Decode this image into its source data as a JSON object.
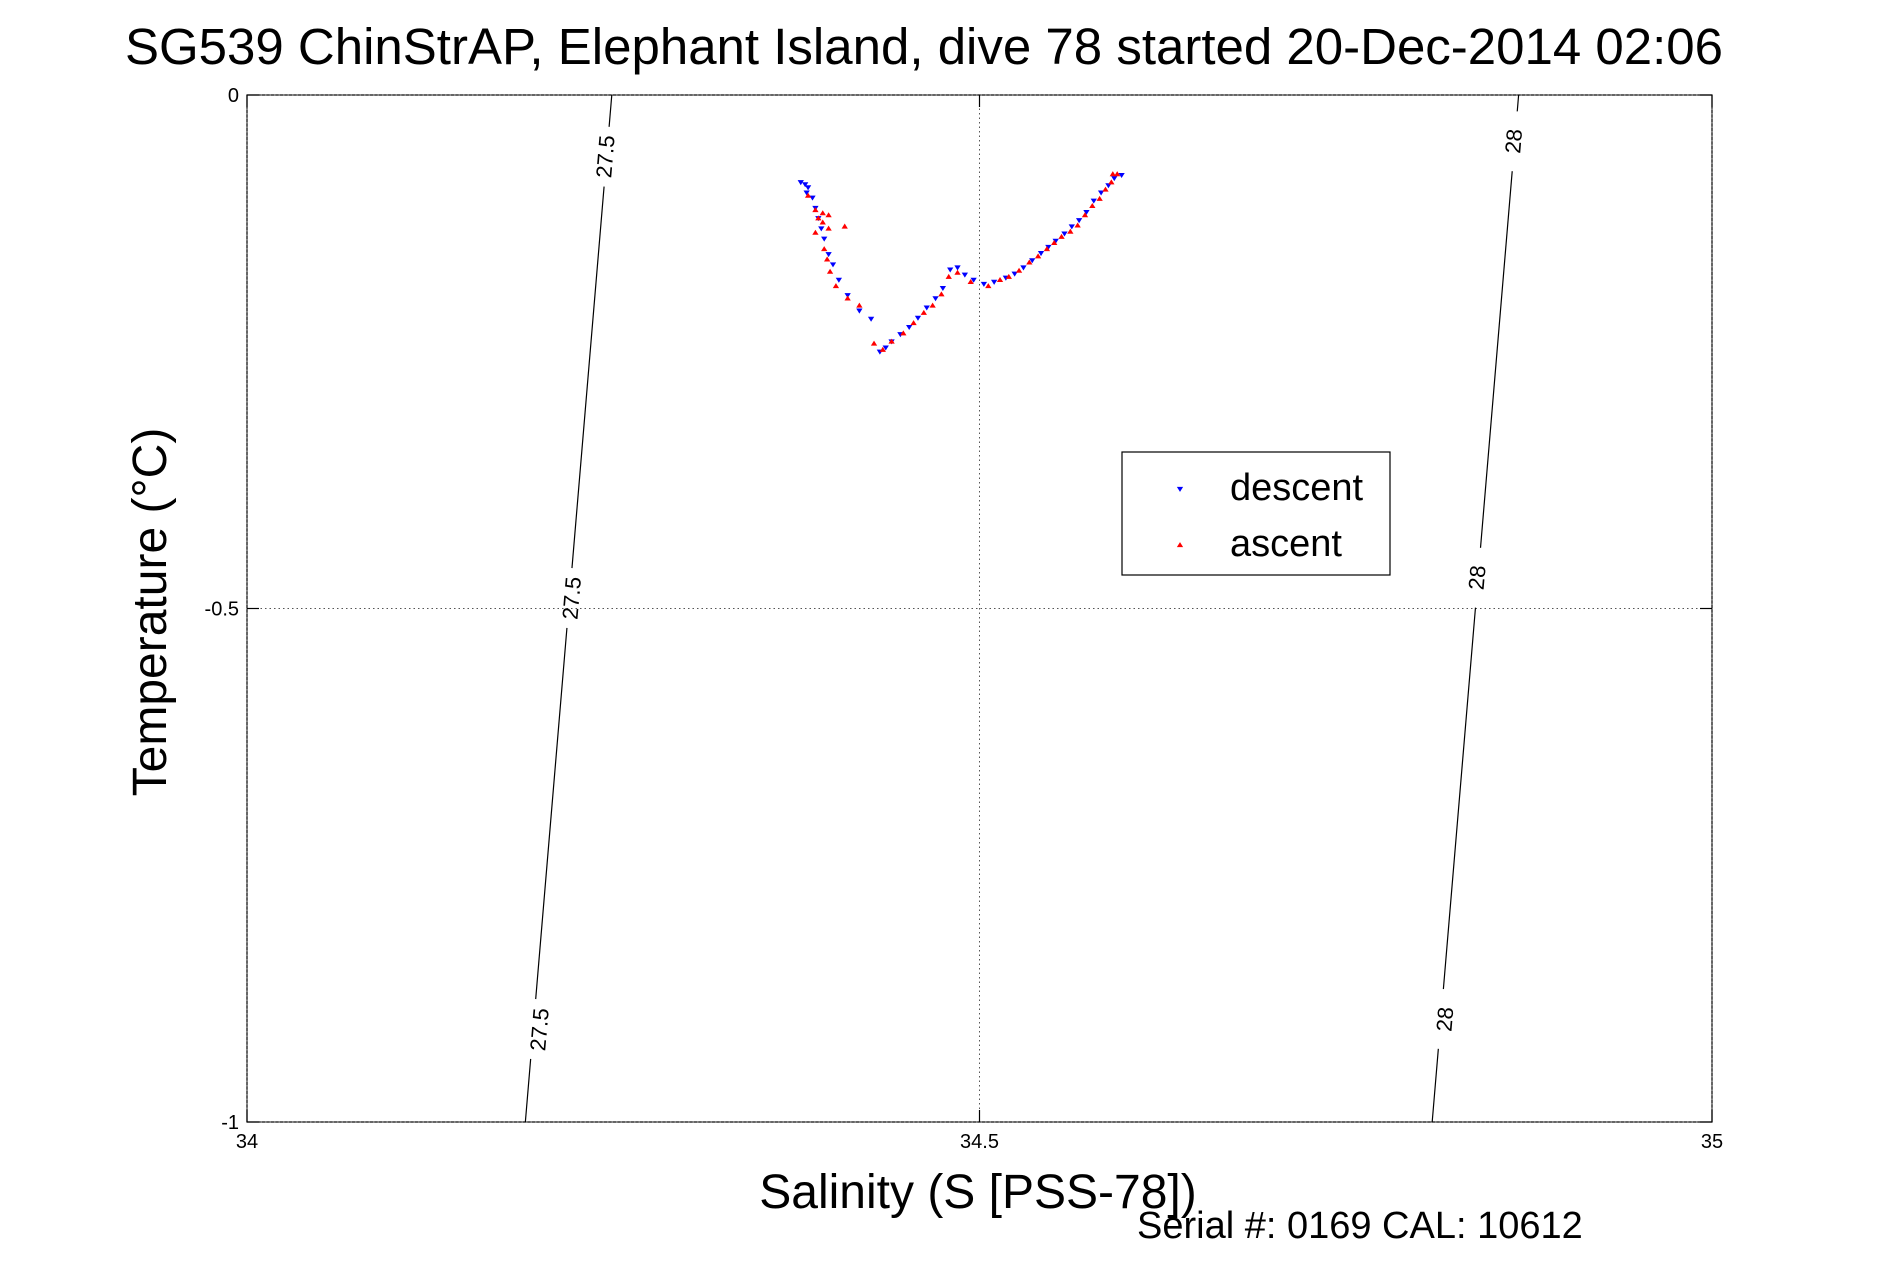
{
  "chart_data": {
    "type": "scatter",
    "title": "SG539 ChinStrAP, Elephant Island, dive 78 started 20-Dec-2014 02:06",
    "xlabel": "Salinity (S [PSS-78])",
    "ylabel": "Temperature (°C)",
    "xlim": [
      34,
      35
    ],
    "ylim": [
      -1,
      0
    ],
    "xticks": [
      34,
      34.5,
      35
    ],
    "xtick_labels": [
      "34",
      "34.5",
      "35"
    ],
    "yticks": [
      0,
      -0.5,
      -1
    ],
    "ytick_labels": [
      "0",
      "-0.5",
      "-1"
    ],
    "grid": true,
    "legend_position": "center-right",
    "footer": "Serial #: 0169 CAL: 10612",
    "isopycnals": [
      {
        "label": "27.5",
        "points": [
          [
            34.249,
            0
          ],
          [
            34.19,
            -1
          ]
        ],
        "label_points": [
          [
            34.245,
            -0.06
          ],
          [
            34.222,
            -0.49
          ],
          [
            34.2,
            -0.91
          ]
        ]
      },
      {
        "label": "28",
        "points": [
          [
            34.868,
            0
          ],
          [
            34.809,
            -1
          ]
        ],
        "label_points": [
          [
            34.865,
            -0.045
          ],
          [
            34.84,
            -0.47
          ],
          [
            34.818,
            -0.9
          ]
        ]
      }
    ],
    "series": [
      {
        "name": "descent",
        "marker": "triangle-down",
        "color": "#0000ff",
        "points": [
          [
            34.378,
            -0.085
          ],
          [
            34.381,
            -0.087
          ],
          [
            34.383,
            -0.09
          ],
          [
            34.382,
            -0.095
          ],
          [
            34.386,
            -0.1
          ],
          [
            34.388,
            -0.11
          ],
          [
            34.39,
            -0.12
          ],
          [
            34.392,
            -0.13
          ],
          [
            34.394,
            -0.14
          ],
          [
            34.397,
            -0.155
          ],
          [
            34.4,
            -0.165
          ],
          [
            34.404,
            -0.18
          ],
          [
            34.41,
            -0.195
          ],
          [
            34.418,
            -0.21
          ],
          [
            34.426,
            -0.218
          ],
          [
            34.432,
            -0.25
          ],
          [
            34.436,
            -0.246
          ],
          [
            34.44,
            -0.24
          ],
          [
            34.446,
            -0.233
          ],
          [
            34.452,
            -0.226
          ],
          [
            34.458,
            -0.217
          ],
          [
            34.464,
            -0.207
          ],
          [
            34.47,
            -0.198
          ],
          [
            34.475,
            -0.188
          ],
          [
            34.48,
            -0.17
          ],
          [
            34.485,
            -0.168
          ],
          [
            34.49,
            -0.175
          ],
          [
            34.496,
            -0.18
          ],
          [
            34.503,
            -0.184
          ],
          [
            34.51,
            -0.182
          ],
          [
            34.518,
            -0.178
          ],
          [
            34.524,
            -0.174
          ],
          [
            34.53,
            -0.168
          ],
          [
            34.536,
            -0.161
          ],
          [
            34.542,
            -0.154
          ],
          [
            34.547,
            -0.148
          ],
          [
            34.552,
            -0.142
          ],
          [
            34.558,
            -0.135
          ],
          [
            34.563,
            -0.128
          ],
          [
            34.568,
            -0.122
          ],
          [
            34.573,
            -0.114
          ],
          [
            34.578,
            -0.103
          ],
          [
            34.583,
            -0.095
          ],
          [
            34.588,
            -0.088
          ],
          [
            34.592,
            -0.081
          ],
          [
            34.597,
            -0.078
          ]
        ]
      },
      {
        "name": "ascent",
        "marker": "triangle-up",
        "color": "#ff0000",
        "points": [
          [
            34.383,
            -0.098
          ],
          [
            34.388,
            -0.112
          ],
          [
            34.393,
            -0.115
          ],
          [
            34.397,
            -0.117
          ],
          [
            34.39,
            -0.12
          ],
          [
            34.393,
            -0.124
          ],
          [
            34.397,
            -0.13
          ],
          [
            34.408,
            -0.128
          ],
          [
            34.388,
            -0.134
          ],
          [
            34.394,
            -0.15
          ],
          [
            34.396,
            -0.16
          ],
          [
            34.398,
            -0.172
          ],
          [
            34.402,
            -0.186
          ],
          [
            34.41,
            -0.198
          ],
          [
            34.418,
            -0.205
          ],
          [
            34.428,
            -0.242
          ],
          [
            34.434,
            -0.248
          ],
          [
            34.44,
            -0.24
          ],
          [
            34.448,
            -0.232
          ],
          [
            34.455,
            -0.222
          ],
          [
            34.462,
            -0.212
          ],
          [
            34.468,
            -0.205
          ],
          [
            34.474,
            -0.194
          ],
          [
            34.479,
            -0.177
          ],
          [
            34.485,
            -0.173
          ],
          [
            34.494,
            -0.182
          ],
          [
            34.506,
            -0.186
          ],
          [
            34.514,
            -0.18
          ],
          [
            34.52,
            -0.177
          ],
          [
            34.527,
            -0.171
          ],
          [
            34.534,
            -0.163
          ],
          [
            34.54,
            -0.157
          ],
          [
            34.546,
            -0.15
          ],
          [
            34.551,
            -0.144
          ],
          [
            34.556,
            -0.138
          ],
          [
            34.562,
            -0.133
          ],
          [
            34.567,
            -0.127
          ],
          [
            34.572,
            -0.117
          ],
          [
            34.577,
            -0.108
          ],
          [
            34.582,
            -0.101
          ],
          [
            34.586,
            -0.092
          ],
          [
            34.59,
            -0.085
          ],
          [
            34.594,
            -0.077
          ],
          [
            34.591,
            -0.077
          ]
        ]
      }
    ]
  }
}
